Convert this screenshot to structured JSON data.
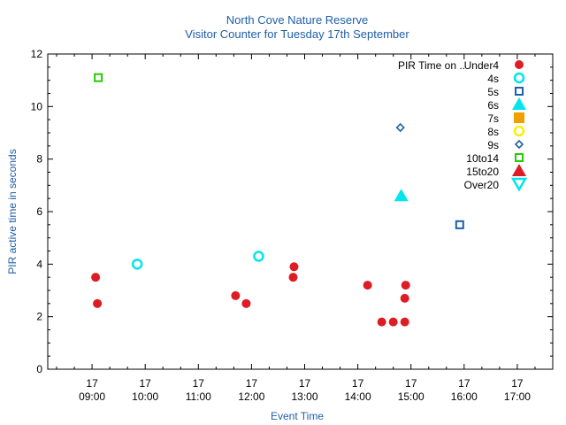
{
  "chart_data": {
    "type": "scatter",
    "title": "North Cove Nature Reserve",
    "subtitle": "Visitor Counter for Tuesday 17th September",
    "xlabel": "Event Time",
    "ylabel": "PIR active time in seconds",
    "title_color": "#1f5ea8",
    "xlim": [
      "08:10",
      "17:40"
    ],
    "ylim": [
      0,
      12
    ],
    "grid": false,
    "legend_position": "top-right",
    "legend_title": "PIR Time on ..",
    "x_ticks": [
      {
        "day": "17",
        "time": "09:00"
      },
      {
        "day": "17",
        "time": "10:00"
      },
      {
        "day": "17",
        "time": "11:00"
      },
      {
        "day": "17",
        "time": "12:00"
      },
      {
        "day": "17",
        "time": "13:00"
      },
      {
        "day": "17",
        "time": "14:00"
      },
      {
        "day": "17",
        "time": "15:00"
      },
      {
        "day": "17",
        "time": "16:00"
      },
      {
        "day": "17",
        "time": "17:00"
      }
    ],
    "y_ticks": [
      "0",
      "2",
      "4",
      "6",
      "8",
      "10",
      "12"
    ],
    "series": [
      {
        "name": "Under4",
        "marker": "circle-filled",
        "color": "#dd1c24",
        "points": [
          {
            "x": "09:04",
            "y": 3.5
          },
          {
            "x": "09:06",
            "y": 2.5
          },
          {
            "x": "11:42",
            "y": 2.8
          },
          {
            "x": "11:54",
            "y": 2.5
          },
          {
            "x": "12:47",
            "y": 3.5
          },
          {
            "x": "12:48",
            "y": 3.9
          },
          {
            "x": "14:11",
            "y": 3.2
          },
          {
            "x": "14:27",
            "y": 1.8
          },
          {
            "x": "14:40",
            "y": 1.8
          },
          {
            "x": "14:53",
            "y": 1.8
          },
          {
            "x": "14:53",
            "y": 2.7
          },
          {
            "x": "14:54",
            "y": 3.2
          }
        ]
      },
      {
        "name": "4s",
        "marker": "circle-open",
        "color": "#00e5ee",
        "points": [
          {
            "x": "09:51",
            "y": 4.0
          },
          {
            "x": "12:08",
            "y": 4.3
          }
        ]
      },
      {
        "name": "5s",
        "marker": "square-open",
        "color": "#1f5ea8",
        "points": [
          {
            "x": "15:55",
            "y": 5.5
          }
        ]
      },
      {
        "name": "6s",
        "marker": "triangle-up-filled",
        "color": "#00e5ee",
        "points": [
          {
            "x": "14:49",
            "y": 6.6
          }
        ]
      },
      {
        "name": "7s",
        "marker": "square-filled",
        "color": "#f0a000",
        "points": []
      },
      {
        "name": "8s",
        "marker": "circle-open",
        "color": "#ffee00",
        "points": []
      },
      {
        "name": "9s",
        "marker": "diamond-open",
        "color": "#1f5ea8",
        "points": [
          {
            "x": "14:48",
            "y": 9.2
          }
        ]
      },
      {
        "name": "10to14",
        "marker": "square-open",
        "color": "#22cc00",
        "points": [
          {
            "x": "09:07",
            "y": 11.1
          }
        ]
      },
      {
        "name": "15to20",
        "marker": "triangle-up-filled",
        "color": "#dd1c24",
        "points": []
      },
      {
        "name": "Over20",
        "marker": "triangle-down-open",
        "color": "#00e5ee",
        "points": []
      }
    ]
  }
}
